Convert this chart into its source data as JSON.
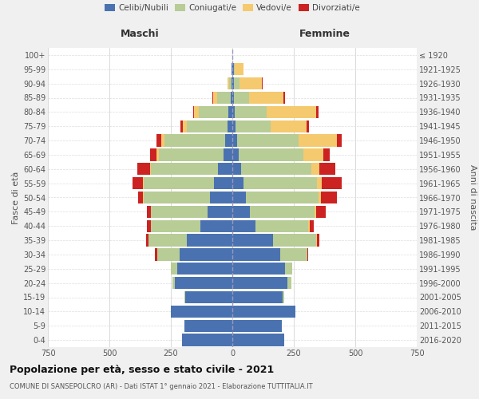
{
  "age_groups": [
    "0-4",
    "5-9",
    "10-14",
    "15-19",
    "20-24",
    "25-29",
    "30-34",
    "35-39",
    "40-44",
    "45-49",
    "50-54",
    "55-59",
    "60-64",
    "65-69",
    "70-74",
    "75-79",
    "80-84",
    "85-89",
    "90-94",
    "95-99",
    "100+"
  ],
  "birth_years": [
    "2016-2020",
    "2011-2015",
    "2006-2010",
    "2001-2005",
    "1996-2000",
    "1991-1995",
    "1986-1990",
    "1981-1985",
    "1976-1980",
    "1971-1975",
    "1966-1970",
    "1961-1965",
    "1956-1960",
    "1951-1955",
    "1946-1950",
    "1941-1945",
    "1936-1940",
    "1931-1935",
    "1926-1930",
    "1921-1925",
    "≤ 1920"
  ],
  "males": {
    "celibi": [
      205,
      195,
      250,
      190,
      235,
      225,
      215,
      185,
      130,
      100,
      90,
      75,
      60,
      35,
      30,
      20,
      15,
      8,
      4,
      2,
      1
    ],
    "coniugati": [
      0,
      0,
      0,
      5,
      10,
      25,
      90,
      155,
      200,
      230,
      270,
      285,
      270,
      265,
      245,
      165,
      120,
      55,
      10,
      2,
      0
    ],
    "vedovi": [
      0,
      0,
      0,
      0,
      0,
      0,
      0,
      0,
      2,
      2,
      3,
      5,
      5,
      8,
      15,
      15,
      20,
      15,
      5,
      0,
      0
    ],
    "divorziati": [
      0,
      0,
      0,
      0,
      0,
      0,
      10,
      10,
      15,
      15,
      20,
      40,
      50,
      25,
      20,
      10,
      5,
      2,
      0,
      0,
      0
    ]
  },
  "females": {
    "nubili": [
      210,
      200,
      255,
      205,
      225,
      215,
      195,
      165,
      95,
      70,
      55,
      45,
      35,
      25,
      20,
      12,
      10,
      8,
      5,
      5,
      1
    ],
    "coniugate": [
      0,
      0,
      0,
      5,
      15,
      30,
      110,
      175,
      215,
      265,
      295,
      300,
      285,
      265,
      250,
      145,
      130,
      60,
      25,
      5,
      0
    ],
    "vedove": [
      0,
      0,
      0,
      0,
      0,
      0,
      0,
      5,
      5,
      5,
      10,
      20,
      35,
      80,
      155,
      145,
      200,
      140,
      90,
      35,
      0
    ],
    "divorziate": [
      0,
      0,
      0,
      0,
      0,
      0,
      5,
      10,
      15,
      40,
      65,
      80,
      65,
      25,
      20,
      10,
      10,
      5,
      2,
      0,
      0
    ]
  },
  "colors": {
    "celibi_nubili": "#4a72b0",
    "coniugati": "#b8cc96",
    "vedovi": "#f5c96e",
    "divorziati": "#cc2222"
  },
  "xlim": 750,
  "title": "Popolazione per età, sesso e stato civile - 2021",
  "subtitle": "COMUNE DI SANSEPOLCRO (AR) - Dati ISTAT 1° gennaio 2021 - Elaborazione TUTTITALIA.IT",
  "xlabel_left": "Maschi",
  "xlabel_right": "Femmine",
  "ylabel_left": "Fasce di età",
  "ylabel_right": "Anni di nascita",
  "bg_color": "#f0f0f0",
  "plot_bg": "#ffffff",
  "legend_labels": [
    "Celibi/Nubili",
    "Coniugati/e",
    "Vedovi/e",
    "Divorziati/e"
  ]
}
